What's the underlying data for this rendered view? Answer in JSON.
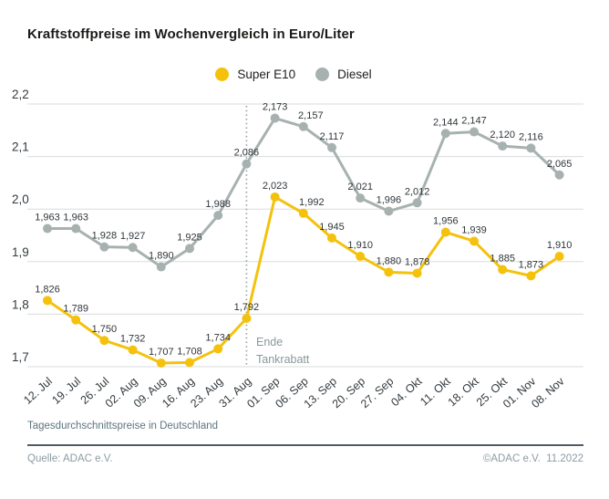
{
  "title": "Kraftstoffpreise im Wochenvergleich in Euro/Liter",
  "legend": [
    {
      "label": "Super E10",
      "color": "#f4c20d"
    },
    {
      "label": "Diesel",
      "color": "#a7b2b0"
    }
  ],
  "annotation": {
    "line1": "Ende",
    "line2": "Tankrabatt"
  },
  "footnote": "Tagesdurchschnittspreise in Deutschland",
  "source": "Quelle: ADAC e.V.",
  "copyright": "©ADAC e.V.  11.2022",
  "chart_data": {
    "type": "line",
    "title": "Kraftstoffpreise im Wochenvergleich in Euro/Liter",
    "categories": [
      "12. Jul",
      "19. Jul",
      "26. Jul",
      "02. Aug",
      "09. Aug",
      "16. Aug",
      "23. Aug",
      "31. Aug",
      "01. Sep",
      "06. Sep",
      "13. Sep",
      "20. Sep",
      "27. Sep",
      "04. Okt",
      "11. Okt",
      "18. Okt",
      "25. Okt",
      "01. Nov",
      "08. Nov"
    ],
    "series": [
      {
        "name": "Super E10",
        "color": "#f4c20d",
        "values": [
          1.826,
          1.789,
          1.75,
          1.732,
          1.707,
          1.708,
          1.734,
          1.792,
          2.023,
          1.992,
          1.945,
          1.91,
          1.88,
          1.878,
          1.956,
          1.939,
          1.885,
          1.873,
          1.91
        ],
        "label_dx": {
          "9": 9
        }
      },
      {
        "name": "Diesel",
        "color": "#a7b2b0",
        "values": [
          1.963,
          1.963,
          1.928,
          1.927,
          1.89,
          1.925,
          1.988,
          2.086,
          2.173,
          2.157,
          2.117,
          2.021,
          1.996,
          2.012,
          2.144,
          2.147,
          2.12,
          2.116,
          2.065
        ],
        "label_dx": {
          "9": 8
        }
      }
    ],
    "ylim": [
      1.7,
      2.2
    ],
    "ytick_step": 0.1,
    "yticks": [
      "1,7",
      "1,8",
      "1,9",
      "2,0",
      "2,1",
      "2,2"
    ],
    "xlabel": "",
    "ylabel": "Euro/Liter",
    "grid": true,
    "legend_position": "top-center",
    "decimal_separator": ",",
    "vline": {
      "at_category": "31. Aug",
      "style": "dotted",
      "label": "Ende Tankrabatt"
    }
  }
}
